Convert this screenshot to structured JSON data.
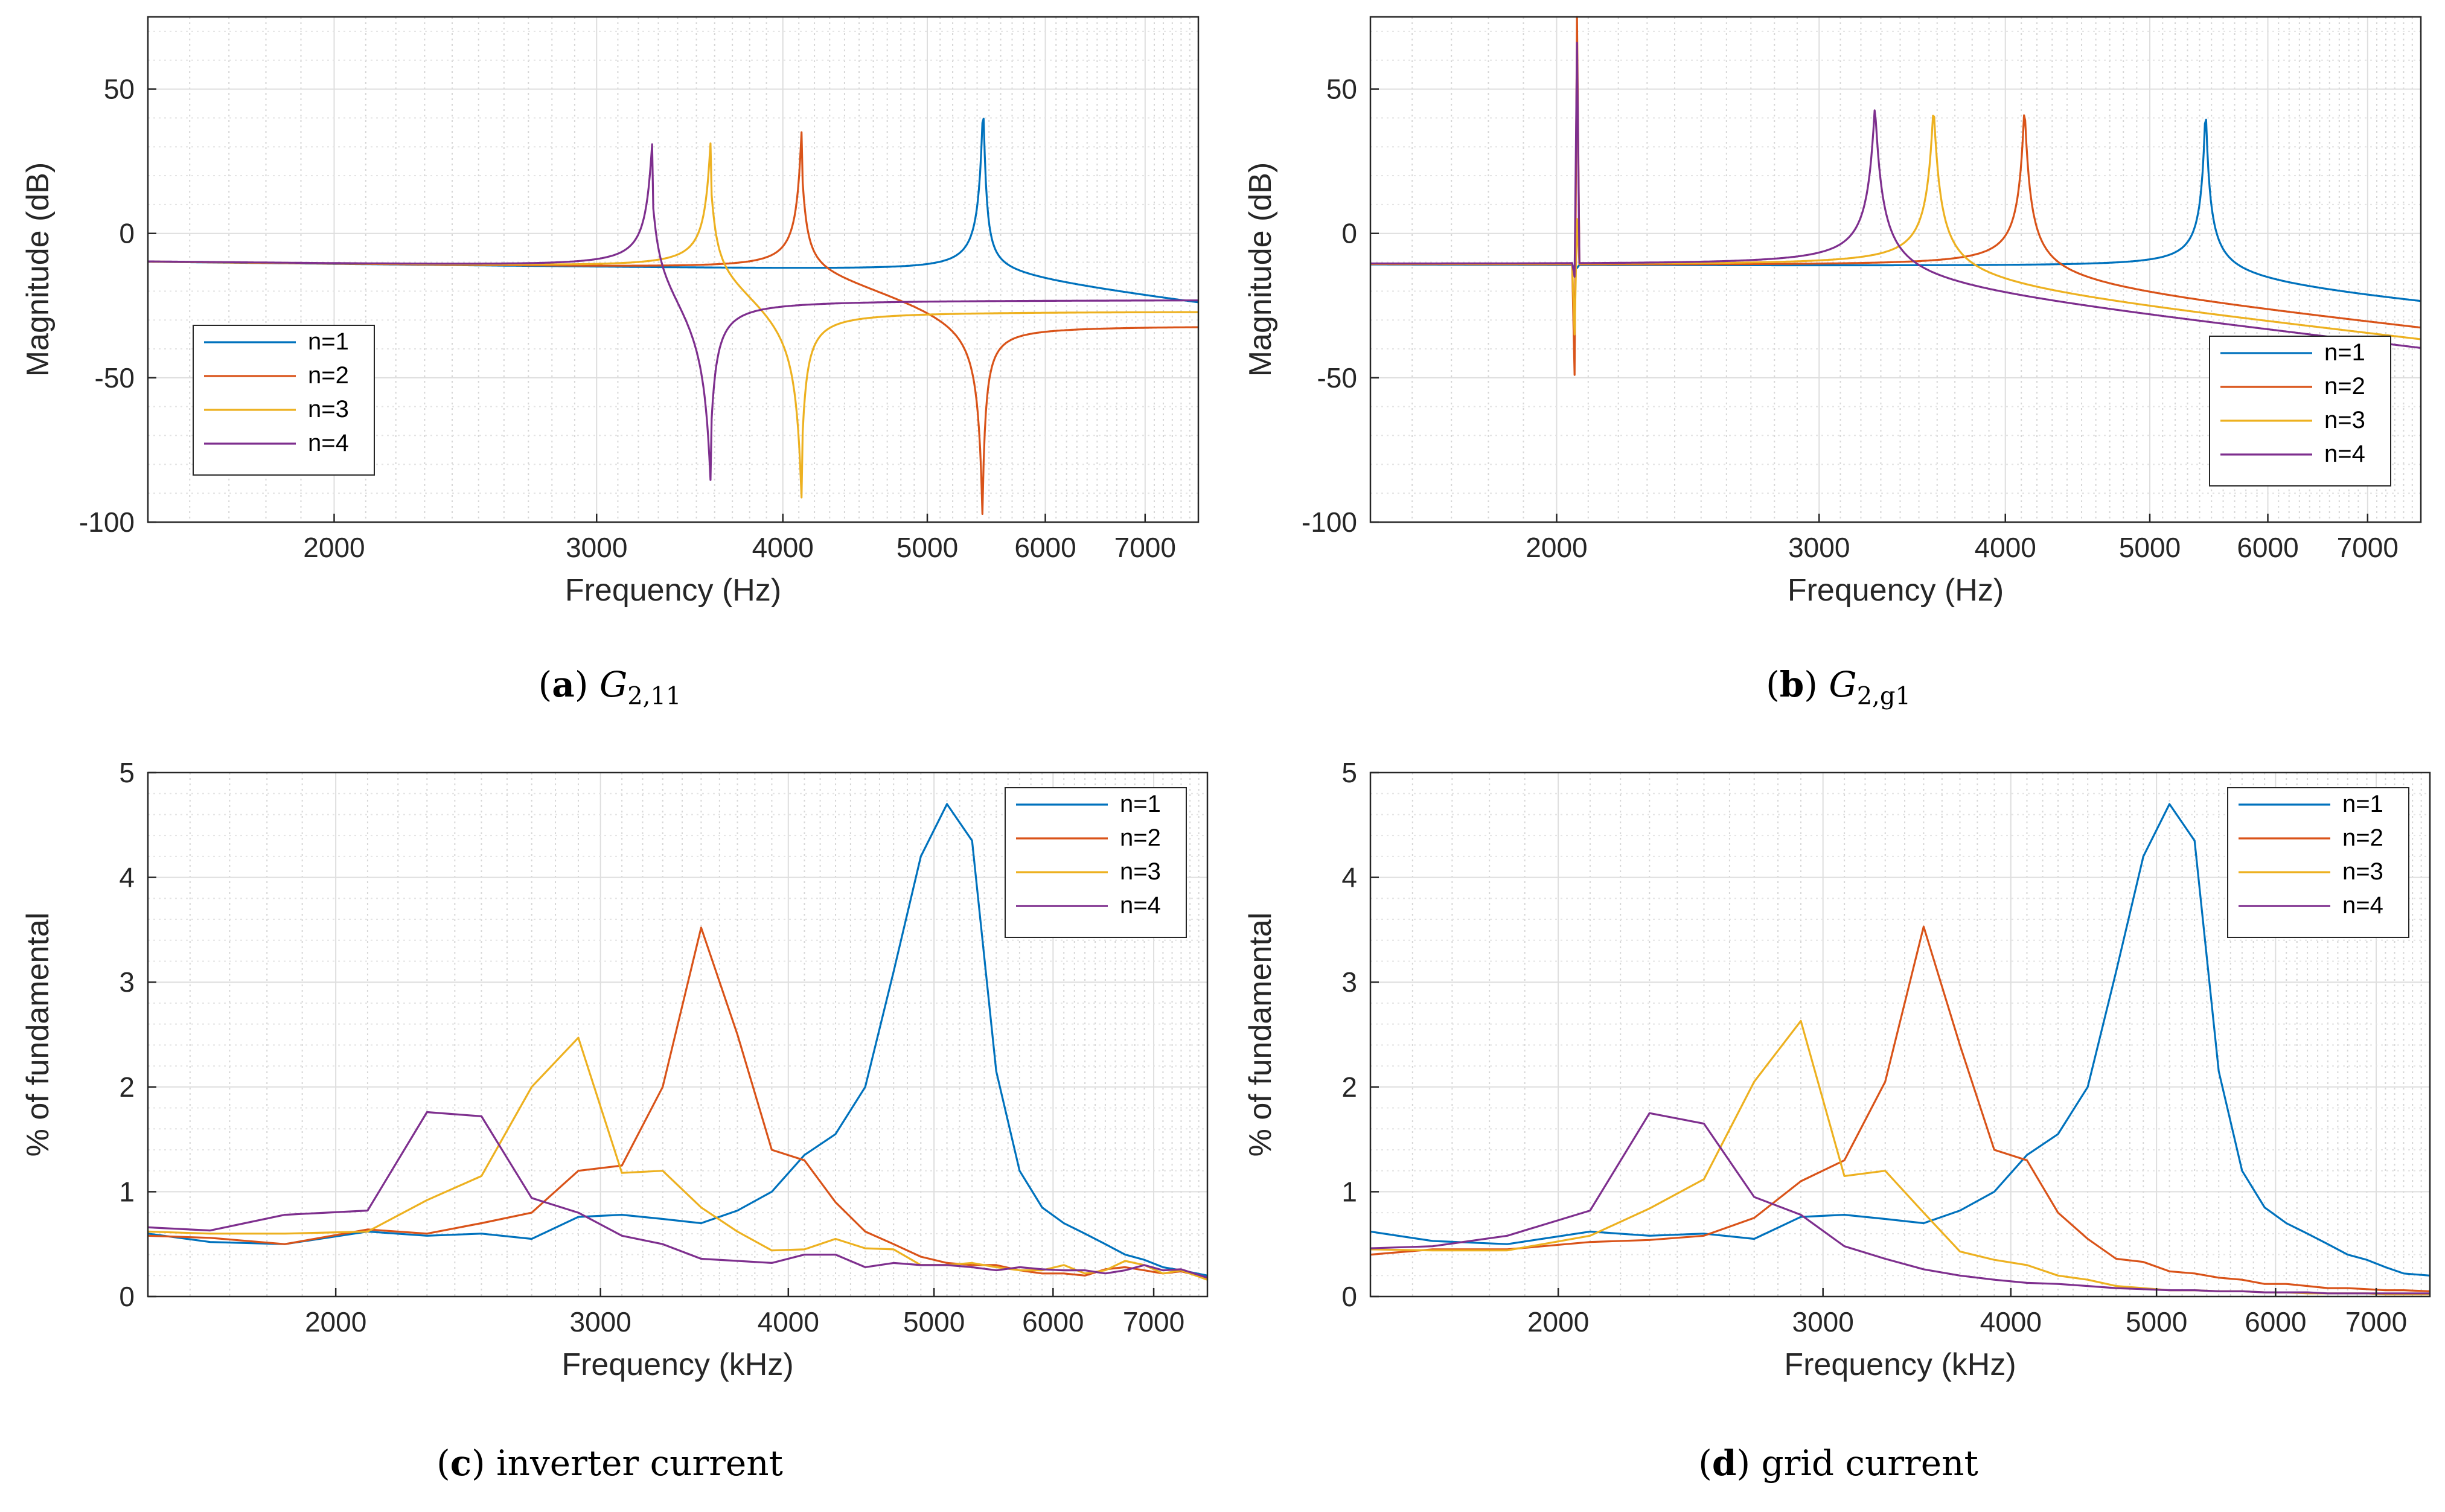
{
  "chart_data": [
    {
      "type": "line",
      "panel_label": "a",
      "caption_symbol": "G",
      "caption_sub": "2,11",
      "xlabel": "Frequency (Hz)",
      "ylabel": "Magnitude (dB)",
      "xscale": "log",
      "xlim": [
        1500,
        7600
      ],
      "ylim": [
        -100,
        75
      ],
      "xticks": [
        2000,
        3000,
        4000,
        5000,
        6000,
        7000
      ],
      "yticks": [
        -100,
        -50,
        0,
        50
      ],
      "grid": true,
      "minor_grid": true,
      "legend_position": "bottom-left",
      "series": [
        {
          "name": "n=1",
          "color": "#0072BD",
          "fr": 5450,
          "peak": 44,
          "ar": 0,
          "antipeak": 0,
          "base": -10,
          "sep_high": -24,
          "kind": "single"
        },
        {
          "name": "n=2",
          "color": "#D95319",
          "fr": 4120,
          "peak": 38,
          "ar": 5450,
          "antipeak": -85,
          "base": -10,
          "after_ar": -32,
          "kind": "peak_notch"
        },
        {
          "name": "n=3",
          "color": "#EDB120",
          "fr": 3580,
          "peak": 34,
          "ar": 4120,
          "antipeak": -74,
          "base": -10,
          "after_ar": -27,
          "kind": "peak_notch"
        },
        {
          "name": "n=4",
          "color": "#7E2F8E",
          "fr": 3270,
          "peak": 32,
          "ar": 3580,
          "antipeak": -68,
          "base": -10,
          "after_ar": -23,
          "kind": "peak_notch"
        }
      ]
    },
    {
      "type": "line",
      "panel_label": "b",
      "caption_symbol": "G",
      "caption_sub": "2,g1",
      "xlabel": "Frequency (Hz)",
      "ylabel": "Magnitude (dB)",
      "xscale": "log",
      "xlim": [
        1500,
        7600
      ],
      "ylim": [
        -100,
        75
      ],
      "xticks": [
        2000,
        3000,
        4000,
        5000,
        6000,
        7000
      ],
      "yticks": [
        -100,
        -50,
        0,
        50
      ],
      "grid": true,
      "minor_grid": true,
      "legend_position": "bottom-right",
      "spike_freq": 2060,
      "series": [
        {
          "name": "n=1",
          "color": "#0072BD",
          "fr": 5450,
          "peak": 44,
          "end": -24,
          "spike_min": -12,
          "spike_max": -12
        },
        {
          "name": "n=2",
          "color": "#D95319",
          "fr": 4120,
          "peak": 44,
          "end": -33,
          "spike_min": -49,
          "spike_max": 75
        },
        {
          "name": "n=3",
          "color": "#EDB120",
          "fr": 3580,
          "peak": 44,
          "end": -37,
          "spike_min": -35,
          "spike_max": 5
        },
        {
          "name": "n=4",
          "color": "#7E2F8E",
          "fr": 3270,
          "peak": 44,
          "end": -40,
          "spike_min": -15,
          "spike_max": 66
        }
      ]
    },
    {
      "type": "line",
      "panel_label": "c",
      "caption_text": "inverter current",
      "xlabel": "Frequency (kHz)",
      "ylabel": "% of fundamental",
      "xscale": "log",
      "xlim": [
        1500,
        7600
      ],
      "ylim": [
        0,
        5
      ],
      "xticks": [
        2000,
        3000,
        4000,
        5000,
        6000,
        7000
      ],
      "yticks": [
        0,
        1,
        2,
        3,
        4,
        5
      ],
      "grid": true,
      "minor_grid": true,
      "legend_position": "top-right",
      "series": [
        {
          "name": "n=1",
          "color": "#0072BD",
          "x": [
            1500,
            1650,
            1850,
            2100,
            2300,
            2500,
            2700,
            2900,
            3100,
            3300,
            3500,
            3700,
            3900,
            4100,
            4300,
            4500,
            4700,
            4900,
            5100,
            5300,
            5500,
            5700,
            5900,
            6100,
            6300,
            6500,
            6700,
            6900,
            7100,
            7300,
            7600
          ],
          "y": [
            0.6,
            0.52,
            0.5,
            0.62,
            0.58,
            0.6,
            0.55,
            0.76,
            0.78,
            0.74,
            0.7,
            0.82,
            1.0,
            1.35,
            1.55,
            2.0,
            3.1,
            4.2,
            4.7,
            4.35,
            2.15,
            1.2,
            0.85,
            0.7,
            0.6,
            0.5,
            0.4,
            0.35,
            0.28,
            0.25,
            0.2
          ]
        },
        {
          "name": "n=2",
          "color": "#D95319",
          "x": [
            1500,
            1650,
            1850,
            2100,
            2300,
            2500,
            2700,
            2900,
            3100,
            3300,
            3500,
            3700,
            3900,
            4100,
            4300,
            4500,
            4700,
            4900,
            5100,
            5300,
            5500,
            5700,
            5900,
            6100,
            6300,
            6500,
            6700,
            6900,
            7100,
            7300,
            7600
          ],
          "y": [
            0.58,
            0.56,
            0.5,
            0.64,
            0.6,
            0.7,
            0.8,
            1.2,
            1.25,
            2.0,
            3.52,
            2.5,
            1.4,
            1.3,
            0.9,
            0.62,
            0.5,
            0.38,
            0.32,
            0.3,
            0.3,
            0.25,
            0.22,
            0.22,
            0.2,
            0.26,
            0.28,
            0.25,
            0.22,
            0.24,
            0.18
          ]
        },
        {
          "name": "n=3",
          "color": "#EDB120",
          "x": [
            1500,
            1650,
            1850,
            2100,
            2300,
            2500,
            2700,
            2900,
            3100,
            3300,
            3500,
            3700,
            3900,
            4100,
            4300,
            4500,
            4700,
            4900,
            5100,
            5300,
            5500,
            5700,
            5900,
            6100,
            6300,
            6500,
            6700,
            6900,
            7100,
            7300,
            7600
          ],
          "y": [
            0.62,
            0.6,
            0.6,
            0.62,
            0.92,
            1.15,
            2.0,
            2.47,
            1.18,
            1.2,
            0.85,
            0.62,
            0.44,
            0.45,
            0.55,
            0.46,
            0.45,
            0.3,
            0.3,
            0.32,
            0.28,
            0.25,
            0.25,
            0.3,
            0.22,
            0.25,
            0.34,
            0.3,
            0.22,
            0.25,
            0.16
          ]
        },
        {
          "name": "n=4",
          "color": "#7E2F8E",
          "x": [
            1500,
            1650,
            1850,
            2100,
            2300,
            2500,
            2700,
            2900,
            3100,
            3300,
            3500,
            3700,
            3900,
            4100,
            4300,
            4500,
            4700,
            4900,
            5100,
            5300,
            5500,
            5700,
            5900,
            6100,
            6300,
            6500,
            6700,
            6900,
            7100,
            7300,
            7600
          ],
          "y": [
            0.66,
            0.63,
            0.78,
            0.82,
            1.76,
            1.72,
            0.94,
            0.8,
            0.58,
            0.5,
            0.36,
            0.34,
            0.32,
            0.4,
            0.4,
            0.28,
            0.32,
            0.3,
            0.3,
            0.28,
            0.25,
            0.28,
            0.26,
            0.25,
            0.25,
            0.22,
            0.25,
            0.3,
            0.25,
            0.26,
            0.18
          ]
        }
      ]
    },
    {
      "type": "line",
      "panel_label": "d",
      "caption_text": "grid current",
      "xlabel": "Frequency (kHz)",
      "ylabel": "% of fundamental",
      "xscale": "log",
      "xlim": [
        1500,
        7600
      ],
      "ylim": [
        0,
        5
      ],
      "xticks": [
        2000,
        3000,
        4000,
        5000,
        6000,
        7000
      ],
      "yticks": [
        0,
        1,
        2,
        3,
        4,
        5
      ],
      "grid": true,
      "minor_grid": true,
      "legend_position": "top-right",
      "series": [
        {
          "name": "n=1",
          "color": "#0072BD",
          "x": [
            1500,
            1650,
            1850,
            2100,
            2300,
            2500,
            2700,
            2900,
            3100,
            3300,
            3500,
            3700,
            3900,
            4100,
            4300,
            4500,
            4700,
            4900,
            5100,
            5300,
            5500,
            5700,
            5900,
            6100,
            6300,
            6500,
            6700,
            6900,
            7100,
            7300,
            7600
          ],
          "y": [
            0.62,
            0.53,
            0.5,
            0.62,
            0.58,
            0.6,
            0.55,
            0.76,
            0.78,
            0.74,
            0.7,
            0.82,
            1.0,
            1.35,
            1.55,
            2.0,
            3.1,
            4.2,
            4.7,
            4.35,
            2.15,
            1.2,
            0.85,
            0.7,
            0.6,
            0.5,
            0.4,
            0.35,
            0.28,
            0.22,
            0.2
          ]
        },
        {
          "name": "n=2",
          "color": "#D95319",
          "x": [
            1500,
            1650,
            1850,
            2100,
            2300,
            2500,
            2700,
            2900,
            3100,
            3300,
            3500,
            3700,
            3900,
            4100,
            4300,
            4500,
            4700,
            4900,
            5100,
            5300,
            5500,
            5700,
            5900,
            6100,
            6300,
            6500,
            6700,
            6900,
            7100,
            7300,
            7600
          ],
          "y": [
            0.4,
            0.45,
            0.45,
            0.52,
            0.54,
            0.58,
            0.75,
            1.1,
            1.3,
            2.05,
            3.53,
            2.4,
            1.4,
            1.3,
            0.8,
            0.55,
            0.36,
            0.33,
            0.24,
            0.22,
            0.18,
            0.16,
            0.12,
            0.12,
            0.1,
            0.08,
            0.08,
            0.07,
            0.06,
            0.06,
            0.05
          ]
        },
        {
          "name": "n=3",
          "color": "#EDB120",
          "x": [
            1500,
            1650,
            1850,
            2100,
            2300,
            2500,
            2700,
            2900,
            3100,
            3300,
            3500,
            3700,
            3900,
            4100,
            4300,
            4500,
            4700,
            4900,
            5100,
            5300,
            5500,
            5700,
            5900,
            6100,
            6300,
            6500,
            6700,
            6900,
            7100,
            7300,
            7600
          ],
          "y": [
            0.45,
            0.44,
            0.44,
            0.58,
            0.84,
            1.12,
            2.05,
            2.63,
            1.15,
            1.2,
            0.8,
            0.43,
            0.35,
            0.3,
            0.2,
            0.16,
            0.1,
            0.08,
            0.06,
            0.06,
            0.05,
            0.05,
            0.04,
            0.04,
            0.03,
            0.03,
            0.03,
            0.03,
            0.02,
            0.02,
            0.02
          ]
        },
        {
          "name": "n=4",
          "color": "#7E2F8E",
          "x": [
            1500,
            1650,
            1850,
            2100,
            2300,
            2500,
            2700,
            2900,
            3100,
            3300,
            3500,
            3700,
            3900,
            4100,
            4300,
            4500,
            4700,
            4900,
            5100,
            5300,
            5500,
            5700,
            5900,
            6100,
            6300,
            6500,
            6700,
            6900,
            7100,
            7300,
            7600
          ],
          "y": [
            0.46,
            0.48,
            0.58,
            0.82,
            1.75,
            1.65,
            0.95,
            0.78,
            0.48,
            0.36,
            0.26,
            0.2,
            0.16,
            0.13,
            0.12,
            0.1,
            0.08,
            0.07,
            0.06,
            0.06,
            0.05,
            0.05,
            0.04,
            0.04,
            0.04,
            0.03,
            0.03,
            0.03,
            0.03,
            0.03,
            0.03
          ]
        }
      ]
    }
  ]
}
